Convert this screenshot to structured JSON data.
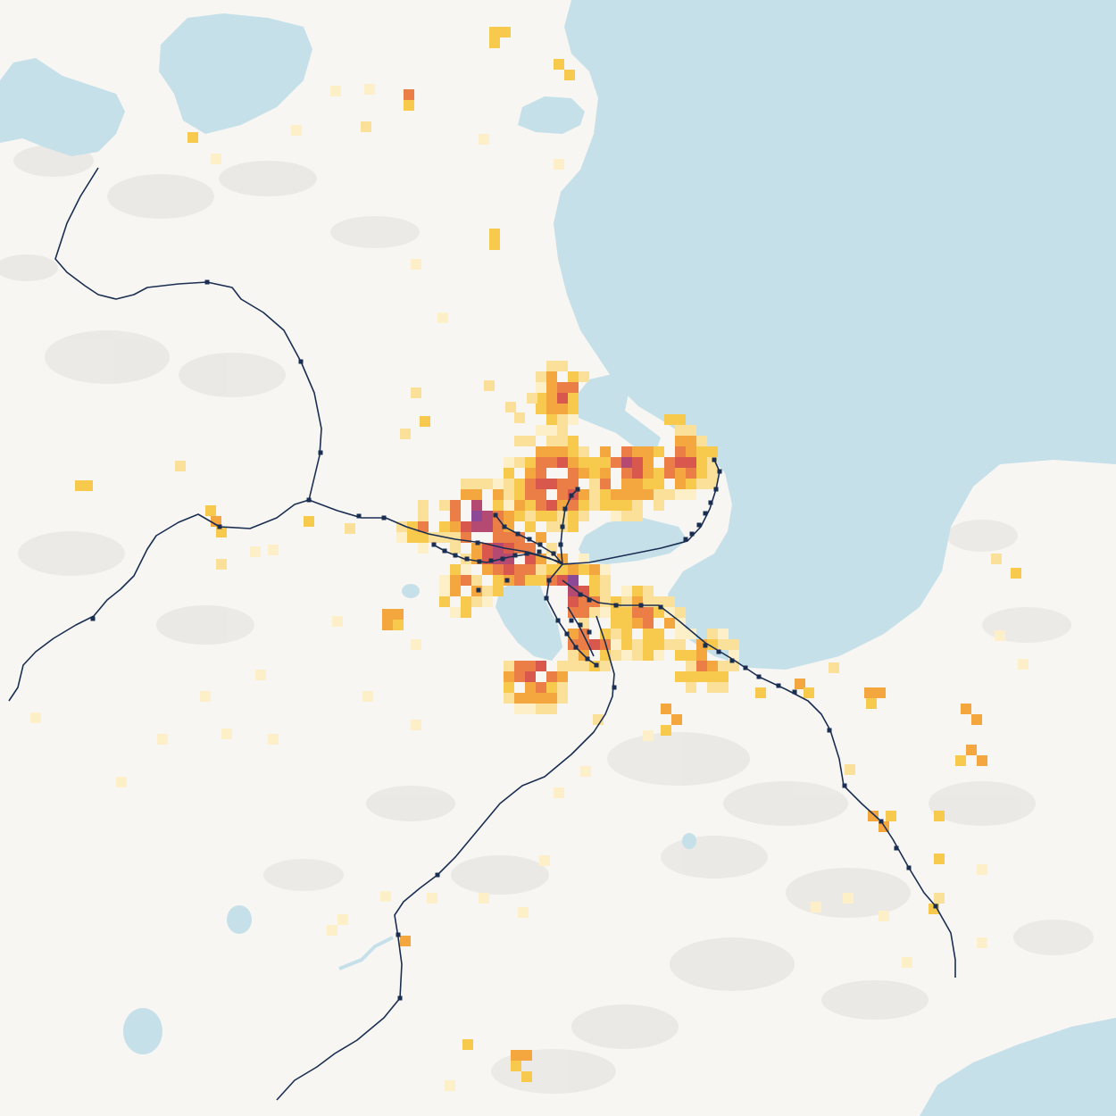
{
  "map": {
    "style": "population-density heatmap over shaded-relief basemap with rail lines",
    "colors": {
      "land": "#f7f6f3",
      "water": "#c6e0ea",
      "relief_shadow": "#d6d3cf",
      "rail_line": "#1a2e52",
      "station": "#1a2e52",
      "density_scale": [
        "#fdf0c8",
        "#fbe09a",
        "#f7c94d",
        "#f3a73e",
        "#ea7e46",
        "#d9584e",
        "#b44a72",
        "#8c4a96"
      ]
    },
    "layers": [
      "water",
      "relief",
      "density-grid",
      "rail-lines",
      "stations"
    ]
  }
}
